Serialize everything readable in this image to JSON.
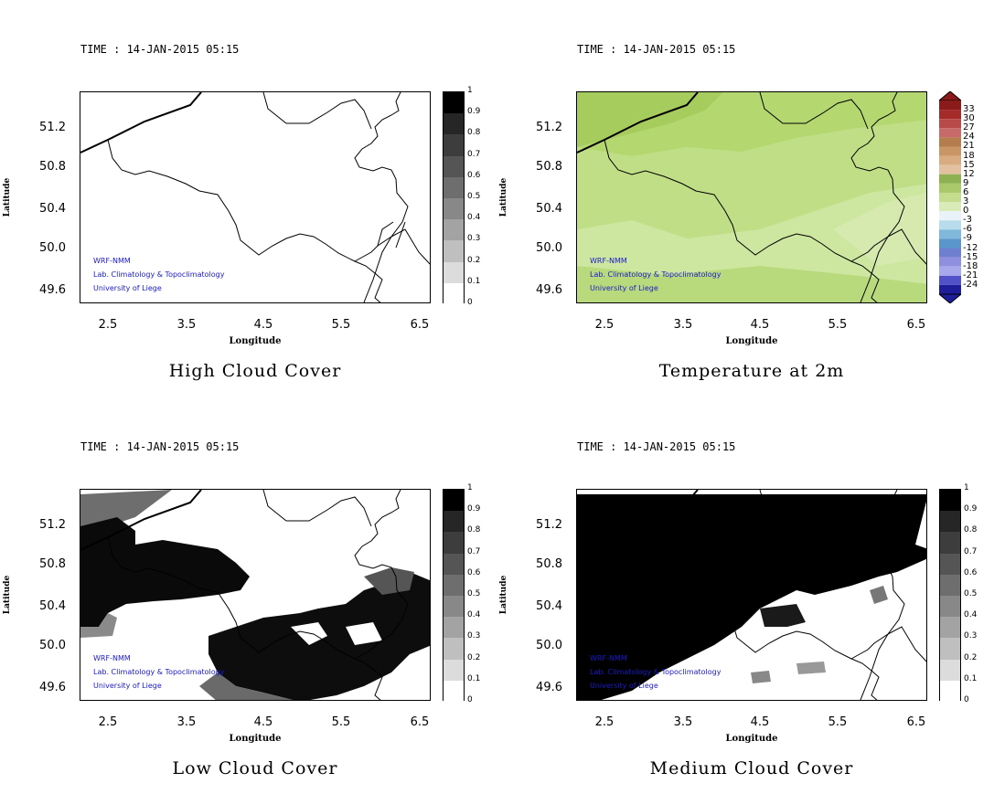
{
  "time_label": "TIME : 14-JAN-2015 05:15",
  "ylabel": "Latitude",
  "xlabel": "Longitude",
  "yticks": [
    "51.2",
    "50.8",
    "50.4",
    "50.0",
    "49.6"
  ],
  "xticks": [
    "2.5",
    "3.5",
    "4.5",
    "5.5",
    "6.5"
  ],
  "credits": [
    "WRF-NMM",
    "Lab. Climatology & Topoclimatology",
    "University of Liege"
  ],
  "cloud_scale": [
    "1",
    "0.9",
    "0.8",
    "0.7",
    "0.6",
    "0.5",
    "0.4",
    "0.3",
    "0.2",
    "0.1",
    "0"
  ],
  "temp_scale": [
    "33",
    "30",
    "27",
    "24",
    "21",
    "18",
    "15",
    "12",
    "9",
    "6",
    "3",
    "0",
    "-3",
    "-6",
    "-9",
    "-12",
    "-15",
    "-18",
    "-21",
    "-24"
  ],
  "colors": {
    "credit_text": "#1a1acc",
    "temp_green": "#b7d97a"
  },
  "panels": [
    {
      "id": "high",
      "title": "High Cloud Cover",
      "scale": "cloud"
    },
    {
      "id": "temp",
      "title": "Temperature at 2m",
      "scale": "temp"
    },
    {
      "id": "low",
      "title": "Low Cloud Cover",
      "scale": "cloud"
    },
    {
      "id": "medium",
      "title": "Medium Cloud Cover",
      "scale": "cloud"
    }
  ]
}
